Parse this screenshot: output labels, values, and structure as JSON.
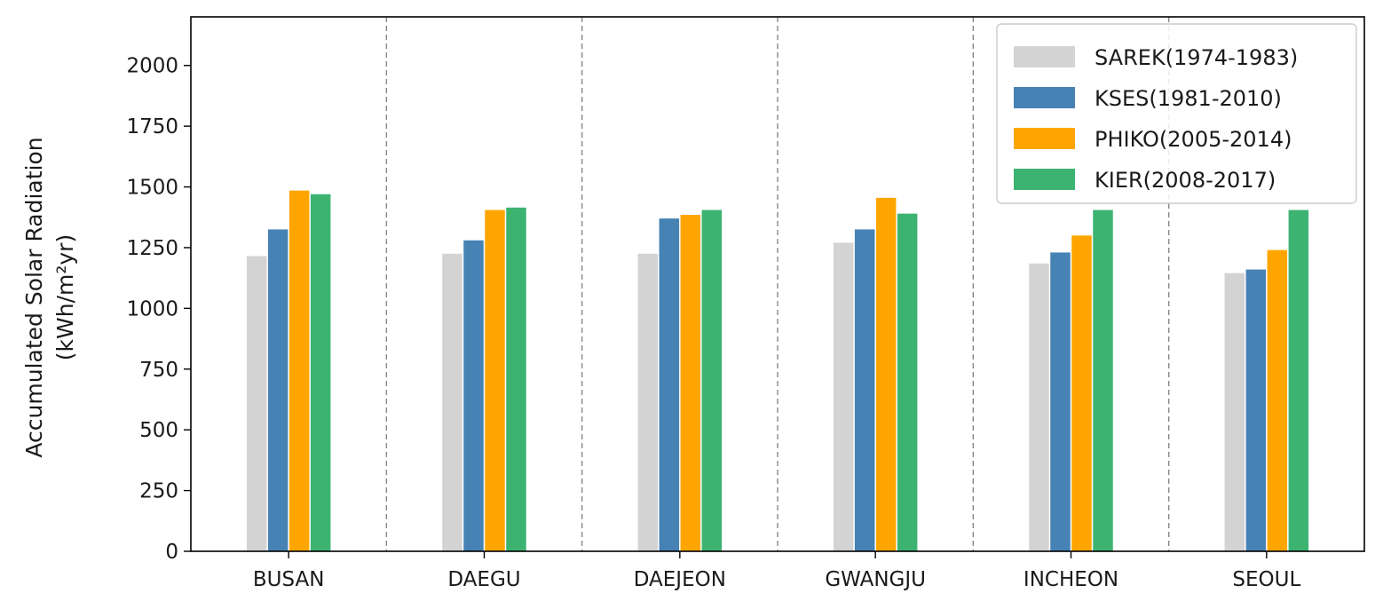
{
  "chart_data": {
    "type": "bar",
    "title": "",
    "xlabel": "",
    "ylabel": "Accumulated Solar Radiation",
    "ylabel_unit": "(kWh/m²yr)",
    "categories": [
      "BUSAN",
      "DAEGU",
      "DAEJEON",
      "GWANGJU",
      "INCHEON",
      "SEOUL"
    ],
    "series": [
      {
        "name": "SAREK(1974-1983)",
        "color": "#d3d3d3",
        "values": [
          1215,
          1225,
          1225,
          1270,
          1185,
          1145
        ]
      },
      {
        "name": "KSES(1981-2010)",
        "color": "#4682b4",
        "values": [
          1325,
          1280,
          1370,
          1325,
          1230,
          1160
        ]
      },
      {
        "name": "PHIKO(2005-2014)",
        "color": "#ffa500",
        "values": [
          1485,
          1405,
          1385,
          1455,
          1300,
          1240
        ]
      },
      {
        "name": "KIER(2008-2017)",
        "color": "#3cb371",
        "values": [
          1470,
          1415,
          1405,
          1390,
          1405,
          1405
        ]
      }
    ],
    "ylim": [
      0,
      2200
    ],
    "yticks": [
      0,
      250,
      500,
      750,
      1000,
      1250,
      1500,
      1750,
      2000
    ],
    "grid": false,
    "category_separators": "dashed vertical lines",
    "legend_position": "top-right"
  }
}
